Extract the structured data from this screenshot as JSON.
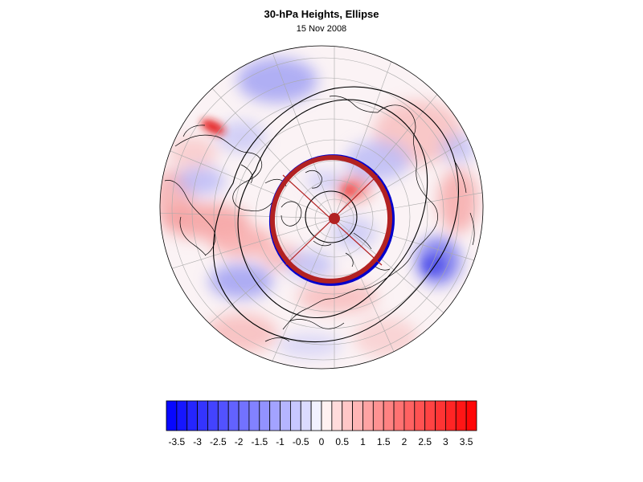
{
  "figure": {
    "title": "30-hPa Heights, Ellipse",
    "subtitle": "15 Nov 2008"
  },
  "colorbar": {
    "tick_labels": [
      "-3.5",
      "-3",
      "-2.5",
      "-2",
      "-1.5",
      "-1",
      "-0.5",
      "0",
      "0.5",
      "1",
      "1.5",
      "2",
      "2.5",
      "3",
      "3.5"
    ],
    "levels": [
      -3.75,
      -3.5,
      -3.25,
      -3,
      -2.75,
      -2.5,
      -2.25,
      -2,
      -1.75,
      -1.5,
      -1.25,
      -1,
      -0.75,
      -0.5,
      -0.25,
      0,
      0.25,
      0.5,
      0.75,
      1,
      1.25,
      1.5,
      1.75,
      2,
      2.25,
      2.5,
      2.75,
      3,
      3.25,
      3.5,
      3.75
    ],
    "min_color": "#0000ff",
    "mid_color": "#ffffff",
    "max_color": "#ff0000"
  },
  "map": {
    "projection": "orthographic, north polar view",
    "contour_color": "#000000",
    "ellipse_color": "#b22222",
    "ellipse_edge_color": "#0000cc"
  }
}
